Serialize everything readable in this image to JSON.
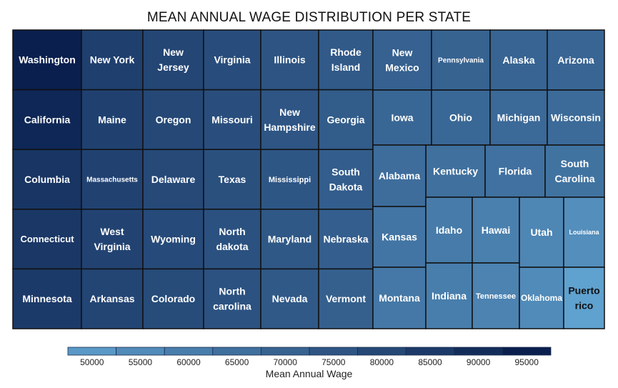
{
  "chart_data": {
    "type": "treemap",
    "title": "MEAN ANNUAL WAGE DISTRIBUTION PER STATE",
    "legend_title": "Mean Annual Wage",
    "legend_ticks": [
      "50000",
      "55000",
      "60000",
      "65000",
      "70000",
      "75000",
      "80000",
      "85000",
      "90000",
      "95000"
    ],
    "color_domain": [
      45000,
      95000
    ],
    "color_range": [
      "#63a6d4",
      "#0a1f4e"
    ],
    "columns": [
      {
        "items": [
          {
            "label": "Washington",
            "value": 95000
          },
          {
            "label": "California",
            "value": 92000
          },
          {
            "label": "Columbia",
            "value": 87000
          },
          {
            "label": "Connecticut",
            "value": 86000
          },
          {
            "label": "Minnesota",
            "value": 85000
          }
        ]
      },
      {
        "items": [
          {
            "label": "New York",
            "value": 83000
          },
          {
            "label": "Maine",
            "value": 82500
          },
          {
            "label": "Massachusetts",
            "value": 82000
          },
          {
            "label": "West Virginia",
            "value": 81500
          },
          {
            "label": "Arkansas",
            "value": 81000
          }
        ]
      },
      {
        "items": [
          {
            "label": "New Jersey",
            "value": 80500
          },
          {
            "label": "Oregon",
            "value": 80000
          },
          {
            "label": "Delaware",
            "value": 79500
          },
          {
            "label": "Wyoming",
            "value": 79000
          },
          {
            "label": "Colorado",
            "value": 78500
          }
        ]
      },
      {
        "items": [
          {
            "label": "Virginia",
            "value": 78000
          },
          {
            "label": "Missouri",
            "value": 77500
          },
          {
            "label": "Texas",
            "value": 77000
          },
          {
            "label": "North dakota",
            "value": 76500
          },
          {
            "label": "North carolina",
            "value": 76000
          }
        ]
      },
      {
        "items": [
          {
            "label": "Illinois",
            "value": 75500
          },
          {
            "label": "New Hampshire",
            "value": 75000
          },
          {
            "label": "Mississippi",
            "value": 74500
          },
          {
            "label": "Maryland",
            "value": 74000
          },
          {
            "label": "Nevada",
            "value": 73500
          }
        ]
      },
      {
        "items": [
          {
            "label": "Rhode Island",
            "value": 73000
          },
          {
            "label": "Georgia",
            "value": 72500
          },
          {
            "label": "South Dakota",
            "value": 72000
          },
          {
            "label": "Nebraska",
            "value": 71500
          },
          {
            "label": "Vermont",
            "value": 71000
          }
        ]
      }
    ],
    "right_rows": [
      {
        "items": [
          {
            "label": "New Mexico",
            "value": 70500
          },
          {
            "label": "Pennsylvania",
            "value": 70000
          },
          {
            "label": "Alaska",
            "value": 69500
          },
          {
            "label": "Arizona",
            "value": 69000
          }
        ]
      },
      {
        "items": [
          {
            "label": "Iowa",
            "value": 68500
          },
          {
            "label": "Ohio",
            "value": 68000
          },
          {
            "label": "Michigan",
            "value": 67500
          },
          {
            "label": "Wisconsin",
            "value": 67000
          }
        ]
      },
      {
        "items": [
          {
            "label": "Kentucky",
            "value": 65000
          },
          {
            "label": "Florida",
            "value": 64500
          },
          {
            "label": "South Carolina",
            "value": 64000
          }
        ]
      }
    ],
    "middle_column": [
      {
        "label": "Alabama",
        "value": 66000
      },
      {
        "label": "Kansas",
        "value": 63000
      },
      {
        "label": "Montana",
        "value": 62000
      }
    ],
    "lower_right_columns": [
      {
        "items": [
          {
            "label": "Idaho",
            "value": 61000
          },
          {
            "label": "Indiana",
            "value": 60000
          }
        ]
      },
      {
        "items": [
          {
            "label": "Hawai",
            "value": 59000
          },
          {
            "label": "Tennessee",
            "value": 58000
          }
        ]
      },
      {
        "items": [
          {
            "label": "Utah",
            "value": 57000
          },
          {
            "label": "Oklahoma",
            "value": 55000
          }
        ]
      },
      {
        "items": [
          {
            "label": "Louisiana",
            "value": 54000
          },
          {
            "label": "Puerto rico",
            "value": 47000
          }
        ]
      }
    ]
  }
}
